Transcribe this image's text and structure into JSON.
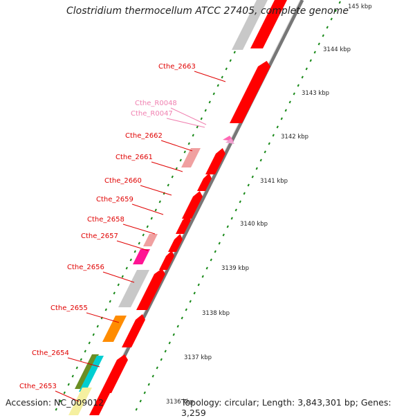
{
  "title": "Clostridium thermocellum ATCC 27405, complete genome",
  "accession": "Accession: NC_009012",
  "topology": "Topology: circular; Length: 3,843,301 bp; Genes: 3,259",
  "kbp_labels": [
    "145 kbp",
    "3144 kbp",
    "3143 kbp",
    "3142 kbp",
    "3141 kbp",
    "3140 kbp",
    "3139 kbp",
    "3138 kbp",
    "3137 kbp",
    "3136 kbp"
  ],
  "gene_labels": [
    {
      "text": "Cthe_2663",
      "color": "#e00000"
    },
    {
      "text": "Cthe_R0048",
      "color": "#f080b0"
    },
    {
      "text": "Cthe_R0047",
      "color": "#f080b0"
    },
    {
      "text": "Cthe_2662",
      "color": "#e00000"
    },
    {
      "text": "Cthe_2661",
      "color": "#e00000"
    },
    {
      "text": "Cthe_2660",
      "color": "#e00000"
    },
    {
      "text": "Cthe_2659",
      "color": "#e00000"
    },
    {
      "text": "Cthe_2658",
      "color": "#e00000"
    },
    {
      "text": "Cthe_2657",
      "color": "#e00000"
    },
    {
      "text": "Cthe_2656",
      "color": "#e00000"
    },
    {
      "text": "Cthe_2655",
      "color": "#e00000"
    },
    {
      "text": "Cthe_2654",
      "color": "#e00000"
    },
    {
      "text": "Cthe_2653",
      "color": "#e00000"
    }
  ]
}
